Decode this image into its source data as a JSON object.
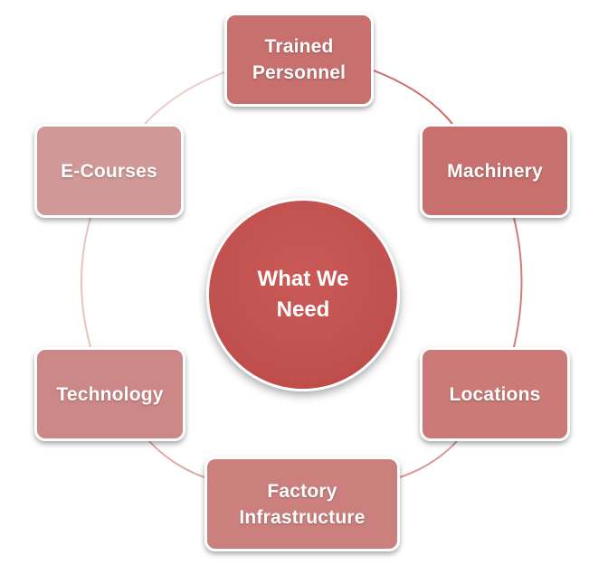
{
  "diagram": {
    "center": {
      "label": "What We\nNeed",
      "color": "#c0504d"
    },
    "ring_color": "#e3b5b4",
    "nodes": [
      {
        "id": "trained",
        "label": "Trained\nPersonnel",
        "color": "#c8706d"
      },
      {
        "id": "machinery",
        "label": "Machinery",
        "color": "#c8706d"
      },
      {
        "id": "locations",
        "label": "Locations",
        "color": "#cb7a77"
      },
      {
        "id": "factory",
        "label": "Factory\nInfrastructure",
        "color": "#cb807e"
      },
      {
        "id": "technology",
        "label": "Technology",
        "color": "#cc8886"
      },
      {
        "id": "ecourses",
        "label": "E-Courses",
        "color": "#d09896"
      }
    ]
  }
}
